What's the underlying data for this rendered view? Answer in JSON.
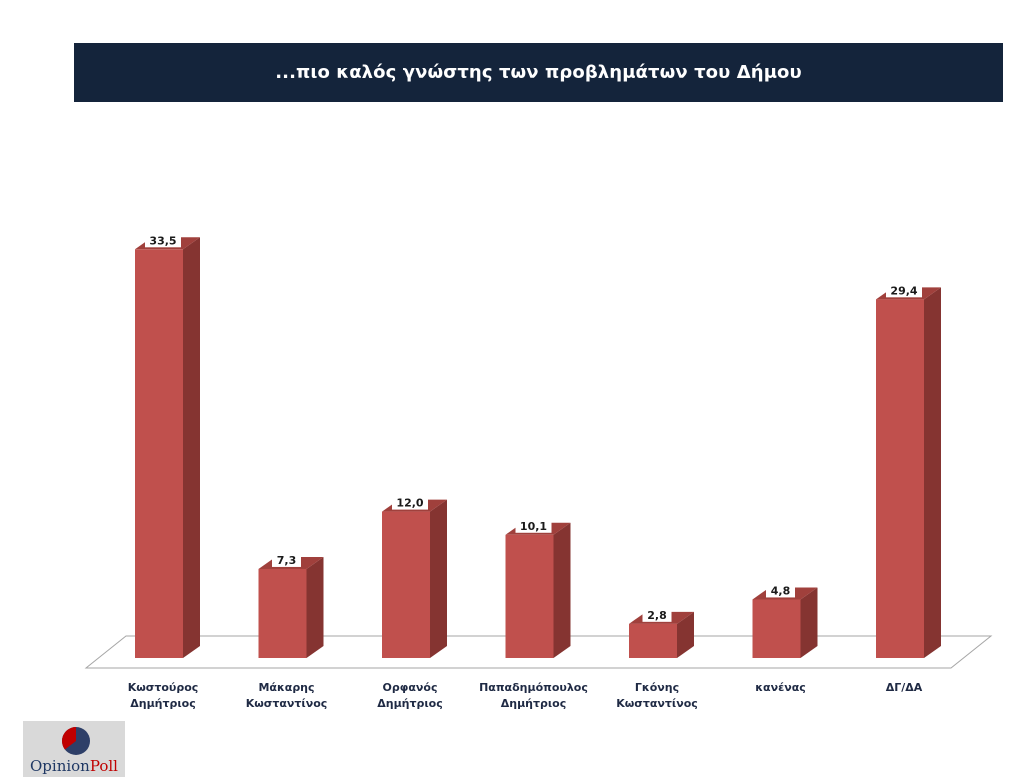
{
  "title": "...πιο καλός γνώστης των προβλημάτων του Δήμου",
  "chart_data": {
    "type": "bar",
    "title": "...πιο καλός γνώστης των προβλημάτων του Δήμου",
    "categories": [
      [
        "Κωστούρος",
        "Δημήτριος"
      ],
      [
        "Μάκαρης",
        "Κωσταντίνος"
      ],
      [
        "Ορφανός",
        "Δημήτριος"
      ],
      [
        "Παπαδημόπουλος",
        "Δημήτριος"
      ],
      [
        "Γκόνης",
        "Κωσταντίνος"
      ],
      [
        "κανένας"
      ],
      [
        "ΔΓ/ΔΑ"
      ]
    ],
    "values": [
      33.5,
      7.3,
      12.0,
      10.1,
      2.8,
      4.8,
      29.4
    ],
    "value_labels": [
      "33,5",
      "7,3",
      "12,0",
      "10,1",
      "2,8",
      "4,8",
      "29,4"
    ],
    "ylim": [
      0,
      36
    ],
    "xlabel": "",
    "ylabel": "",
    "grid": false,
    "legend": "none",
    "style": "3d-column"
  },
  "colors": {
    "banner": "#14243b",
    "bar_front": "#c0504d",
    "bar_side": "#853431",
    "bar_top": "#a0403c"
  },
  "logo": {
    "part1": "Opinion",
    "part2": "Poll"
  }
}
